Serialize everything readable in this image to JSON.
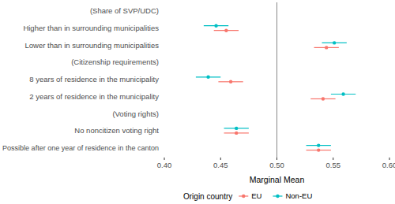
{
  "chart_data": {
    "type": "dot",
    "orientation": "horizontal",
    "x_label": "Marginal Mean",
    "legend_title": "Origin country",
    "legend": "bottom",
    "grid": false,
    "categories": [
      "(Share of SVP/UDC)",
      "Higher than in surrounding municipalities",
      "Lower than in surrounding municipalities",
      "(Citizenship requirements)",
      "8 years of residence in the municipality",
      "2 years of residence in the municipality",
      "(Voting rights)",
      "No noncitizen voting right",
      "Possible after one year of residence in the canton"
    ],
    "series": [
      {
        "name": "EU",
        "color": "#F8766D",
        "marker": "circle",
        "values": [
          null,
          0.455,
          0.544,
          null,
          0.459,
          0.541,
          null,
          0.464,
          0.537
        ],
        "errors": [
          null,
          0.011,
          0.011,
          null,
          0.011,
          0.011,
          null,
          0.011,
          0.011
        ]
      },
      {
        "name": "Non-EU",
        "color": "#00BFC4",
        "marker": "circle",
        "values": [
          null,
          0.446,
          0.551,
          null,
          0.439,
          0.559,
          null,
          0.464,
          0.537
        ],
        "errors": [
          null,
          0.011,
          0.011,
          null,
          0.011,
          0.011,
          null,
          0.011,
          0.011
        ]
      }
    ],
    "reference_line": 0.5,
    "xlim": [
      0.4,
      0.6
    ],
    "xticks": [
      {
        "value": 0.4,
        "label": "0.40"
      },
      {
        "value": 0.45,
        "label": "0.45"
      },
      {
        "value": 0.5,
        "label": "0.50"
      },
      {
        "value": 0.55,
        "label": "0.55"
      },
      {
        "value": 0.6,
        "label": "0.60"
      }
    ]
  }
}
